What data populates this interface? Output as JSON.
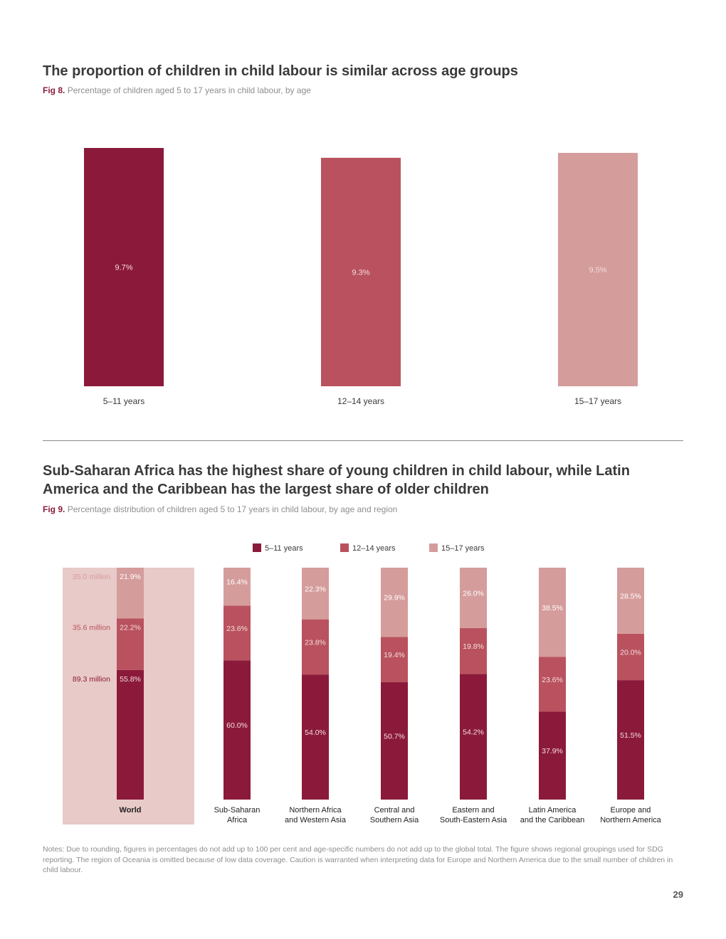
{
  "fig8": {
    "title": "The proportion of children in child labour is similar across age groups",
    "fig_label": "Fig 8.",
    "caption": "Percentage of children aged 5 to 17 years in child labour, by age"
  },
  "fig9": {
    "title_line1": "Sub-Saharan Africa has the highest share of young children in child labour, while Latin",
    "title_line2": "America and the Caribbean has the largest share of older children",
    "fig_label": "Fig 9.",
    "caption": "Percentage distribution of children aged 5 to 17 years in child labour, by age and region"
  },
  "notes": "Notes: Due to rounding, figures in percentages do not add up to 100 per cent and age-specific numbers do not add up to the global total. The figure shows regional groupings used for SDG reporting. The region of Oceania is omitted because of low data coverage. Caution is warranted when interpreting data for Europe and Northern America due to the small number of children in child labour.",
  "page_number": "29",
  "colors": {
    "age_5_11": "#8b1a3a",
    "age_12_14": "#b9525e",
    "age_15_17": "#d59c9c",
    "world_panel": "#e8cac8",
    "label_on_bar": "#f4dcdc",
    "label_light_bar": "#ffffff"
  },
  "chart_data": [
    {
      "type": "bar",
      "categories": [
        "5–11 years",
        "12–14 years",
        "15–17 years"
      ],
      "values": [
        9.7,
        9.3,
        9.5
      ],
      "value_labels": [
        "9.7%",
        "9.3%",
        "9.5%"
      ]
    },
    {
      "type": "bar",
      "stacked": true,
      "legend_position": "top-center",
      "categories": [
        [
          "World"
        ],
        [
          "Sub-Saharan",
          "Africa"
        ],
        [
          "Northern Africa",
          "and Western Asia"
        ],
        [
          "Central and",
          "Southern Asia"
        ],
        [
          "Eastern and",
          "South-Eastern Asia"
        ],
        [
          "Latin America",
          "and the Caribbean"
        ],
        [
          "Europe and",
          "Northern America"
        ]
      ],
      "series": [
        {
          "name": "5–11 years",
          "values": [
            55.8,
            60.0,
            54.0,
            50.7,
            54.2,
            37.9,
            51.5
          ],
          "labels": [
            "55.8%",
            "60.0%",
            "54.0%",
            "50.7%",
            "54.2%",
            "37.9%",
            "51.5%"
          ]
        },
        {
          "name": "12–14 years",
          "values": [
            22.2,
            23.6,
            23.8,
            19.4,
            19.8,
            23.6,
            20.0
          ],
          "labels": [
            "22.2%",
            "23.6%",
            "23.8%",
            "19.4%",
            "19.8%",
            "23.6%",
            "20.0%"
          ]
        },
        {
          "name": "15–17 years",
          "values": [
            21.9,
            16.4,
            22.3,
            29.9,
            26.0,
            38.5,
            28.5
          ],
          "labels": [
            "21.9%",
            "16.4%",
            "22.3%",
            "29.9%",
            "26.0%",
            "38.5%",
            "28.5%"
          ]
        }
      ],
      "world_counts": [
        "89.3 million",
        "35.6 million",
        "35.0 million"
      ]
    }
  ]
}
